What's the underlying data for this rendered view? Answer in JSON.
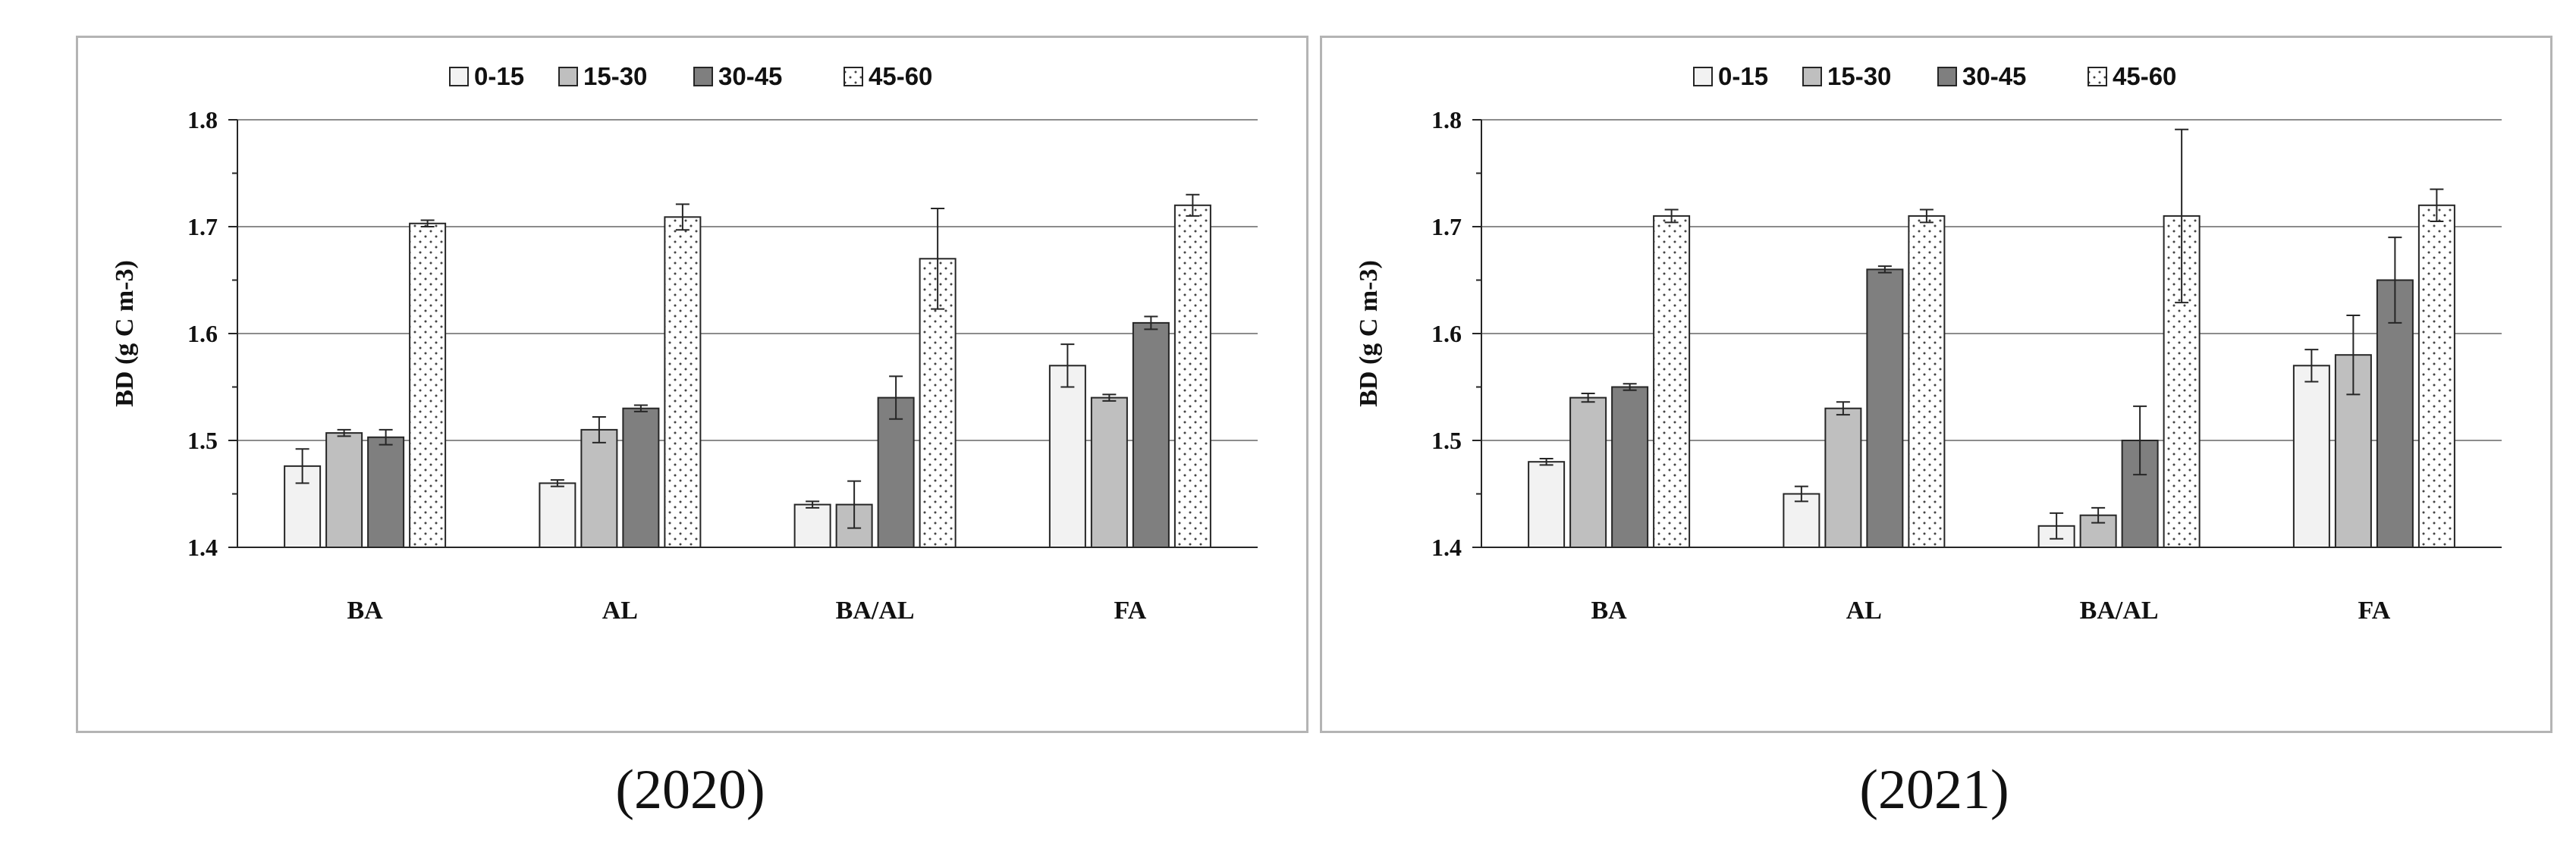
{
  "captions": [
    "(2020)",
    "(2021)"
  ],
  "colors": {
    "c0_15": "#f2f2f2",
    "c15_30": "#bfbfbf",
    "c30_45": "#7f7f7f",
    "c45_60": "#ffffff",
    "grid": "#8c8c8c",
    "stroke": "#262626"
  },
  "chart_data": [
    {
      "type": "bar",
      "title": "",
      "caption": "(2020)",
      "xlabel": "",
      "ylabel": "BD (g C m-3)",
      "ylim": [
        1.4,
        1.8
      ],
      "yticks": [
        "1.4",
        "1.5",
        "1.6",
        "1.7",
        "1.8"
      ],
      "grid": true,
      "legend_position": "top-center",
      "categories": [
        "BA",
        "AL",
        "BA/AL",
        "FA"
      ],
      "series": [
        {
          "name": "0-15",
          "values": [
            1.476,
            1.46,
            1.44,
            1.57
          ],
          "errors": [
            0.016,
            0.003,
            0.003,
            0.02
          ]
        },
        {
          "name": "15-30",
          "values": [
            1.507,
            1.51,
            1.44,
            1.54
          ],
          "errors": [
            0.003,
            0.012,
            0.022,
            0.003
          ]
        },
        {
          "name": "30-45",
          "values": [
            1.503,
            1.53,
            1.54,
            1.61
          ],
          "errors": [
            0.007,
            0.003,
            0.02,
            0.006
          ]
        },
        {
          "name": "45-60",
          "values": [
            1.703,
            1.709,
            1.67,
            1.72
          ],
          "errors": [
            0.003,
            0.012,
            0.047,
            0.01
          ]
        }
      ]
    },
    {
      "type": "bar",
      "title": "",
      "caption": "(2021)",
      "xlabel": "",
      "ylabel": "BD (g C m-3)",
      "ylim": [
        1.4,
        1.8
      ],
      "yticks": [
        "1.4",
        "1.5",
        "1.6",
        "1.7",
        "1.8"
      ],
      "grid": true,
      "legend_position": "top-center",
      "categories": [
        "BA",
        "AL",
        "BA/AL",
        "FA"
      ],
      "series": [
        {
          "name": "0-15",
          "values": [
            1.48,
            1.45,
            1.42,
            1.57
          ],
          "errors": [
            0.003,
            0.007,
            0.012,
            0.015
          ]
        },
        {
          "name": "15-30",
          "values": [
            1.54,
            1.53,
            1.43,
            1.58
          ],
          "errors": [
            0.004,
            0.006,
            0.007,
            0.037
          ]
        },
        {
          "name": "30-45",
          "values": [
            1.55,
            1.66,
            1.5,
            1.65
          ],
          "errors": [
            0.003,
            0.003,
            0.032,
            0.04
          ]
        },
        {
          "name": "45-60",
          "values": [
            1.71,
            1.71,
            1.71,
            1.72
          ],
          "errors": [
            0.006,
            0.006,
            0.081,
            0.015
          ]
        }
      ]
    }
  ]
}
